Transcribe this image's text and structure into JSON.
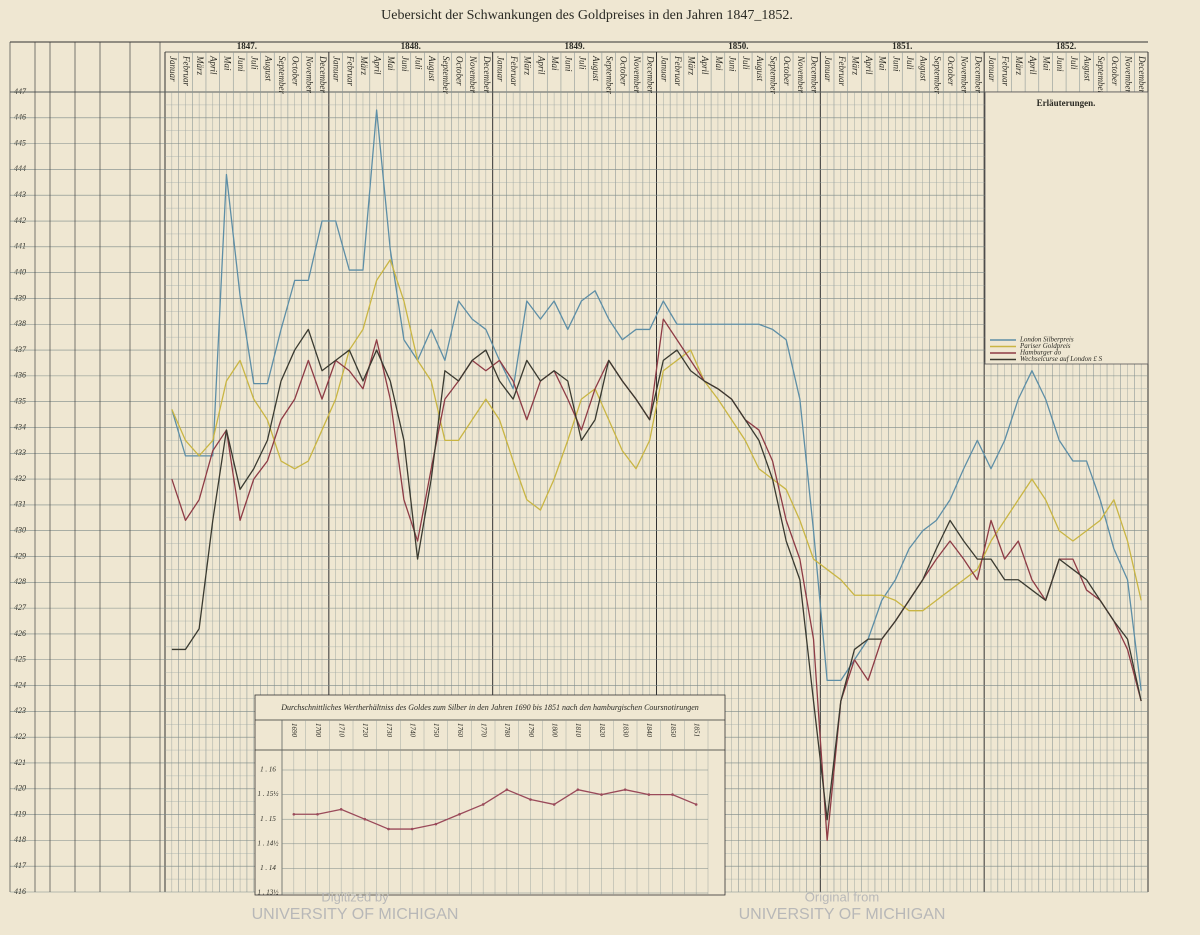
{
  "chart_data": [
    {
      "type": "line",
      "title": "Uebersicht der Schwankungen des Goldpreises in den Jahren 1847_1852.",
      "years": [
        "1847.",
        "1848.",
        "1849.",
        "1850.",
        "1851.",
        "1852."
      ],
      "categories": [
        "Januar",
        "Februar",
        "März",
        "April",
        "Mai",
        "Juni",
        "Juli",
        "August",
        "September",
        "October",
        "November",
        "December",
        "Januar",
        "Februar",
        "März",
        "April",
        "Mai",
        "Juni",
        "Juli",
        "August",
        "September",
        "October",
        "November",
        "December",
        "Januar",
        "Februar",
        "März",
        "April",
        "Mai",
        "Juni",
        "Juli",
        "August",
        "September",
        "October",
        "November",
        "December",
        "Januar",
        "Februar",
        "März",
        "April",
        "Mai",
        "Juni",
        "Juli",
        "August",
        "September",
        "October",
        "November",
        "December",
        "Januar",
        "Februar",
        "März",
        "April",
        "Mai",
        "Juni",
        "Juli",
        "August",
        "September",
        "October",
        "November",
        "December",
        "Januar",
        "Februar",
        "März",
        "April",
        "Mai",
        "Juni",
        "Juli",
        "August",
        "September",
        "October",
        "November",
        "December"
      ],
      "legend_title": "Erläuterungen.",
      "series": [
        {
          "name": "London Silberpreis",
          "color": "#5d8ea6",
          "values": [
            434.7,
            432.9,
            432.9,
            432.9,
            443.8,
            439.1,
            435.7,
            435.7,
            437.8,
            439.7,
            439.7,
            442.0,
            442.0,
            440.1,
            440.1,
            446.3,
            440.9,
            437.4,
            436.6,
            437.8,
            436.6,
            438.9,
            438.2,
            437.8,
            436.6,
            435.5,
            438.9,
            438.2,
            438.9,
            437.8,
            438.9,
            439.3,
            438.2,
            437.4,
            437.8,
            437.8,
            438.9,
            438.0,
            438.0,
            438.0,
            438.0,
            438.0,
            438.0,
            438.0,
            437.8,
            437.4,
            435.1,
            430.0,
            424.2,
            424.2,
            425.0,
            425.8,
            427.3,
            428.1,
            429.3,
            430.0,
            430.4,
            431.2,
            432.4,
            433.5,
            432.4,
            433.5,
            435.1,
            436.2,
            435.1,
            433.5,
            432.7,
            432.7,
            431.2,
            429.3,
            428.1,
            423.8
          ]
        },
        {
          "name": "Pariser Goldpreis",
          "color": "#c9b543",
          "values": [
            434.7,
            433.5,
            432.9,
            433.5,
            435.8,
            436.6,
            435.1,
            434.3,
            432.7,
            432.4,
            432.7,
            433.9,
            435.1,
            437.0,
            437.8,
            439.7,
            440.5,
            438.9,
            436.6,
            435.8,
            433.5,
            433.5,
            434.3,
            435.1,
            434.3,
            432.7,
            431.2,
            430.8,
            432.0,
            433.5,
            435.1,
            435.5,
            434.3,
            433.1,
            432.4,
            433.5,
            436.2,
            436.6,
            437.0,
            435.8,
            435.1,
            434.3,
            433.5,
            432.4,
            432.0,
            431.6,
            430.4,
            428.9,
            428.5,
            428.1,
            427.5,
            427.5,
            427.5,
            427.3,
            426.9,
            426.9,
            427.3,
            427.7,
            428.1,
            428.5,
            429.6,
            430.4,
            431.2,
            432.0,
            431.2,
            430.0,
            429.6,
            430.0,
            430.4,
            431.2,
            429.6,
            427.3
          ]
        },
        {
          "name": "Hamburger do",
          "color": "#8e3b45",
          "values": [
            432.0,
            430.4,
            431.2,
            433.1,
            433.9,
            430.4,
            432.0,
            432.7,
            434.3,
            435.1,
            436.6,
            435.1,
            436.6,
            436.2,
            435.5,
            437.4,
            435.1,
            431.2,
            429.6,
            432.4,
            435.1,
            435.8,
            436.6,
            436.2,
            436.6,
            435.8,
            434.3,
            435.8,
            436.2,
            435.1,
            433.9,
            435.5,
            436.6,
            435.8,
            435.1,
            434.3,
            438.2,
            437.4,
            436.6,
            435.8,
            435.5,
            435.1,
            434.3,
            433.9,
            432.7,
            430.4,
            428.9,
            425.8,
            418.0,
            423.4,
            425.0,
            424.2,
            425.8,
            426.5,
            427.3,
            428.1,
            428.9,
            429.6,
            428.9,
            428.1,
            430.4,
            428.9,
            429.6,
            428.1,
            427.3,
            428.9,
            428.9,
            427.7,
            427.3,
            426.5,
            425.4,
            423.4
          ]
        },
        {
          "name": "Wechselcurse auf London £ S",
          "color": "#3a3a30",
          "values": [
            425.4,
            425.4,
            426.2,
            430.4,
            433.9,
            431.6,
            432.4,
            433.5,
            435.8,
            437.0,
            437.8,
            436.2,
            436.6,
            437.0,
            435.8,
            437.0,
            435.8,
            433.5,
            428.9,
            432.0,
            436.2,
            435.8,
            436.6,
            437.0,
            435.8,
            435.1,
            436.6,
            435.8,
            436.2,
            435.8,
            433.5,
            434.3,
            436.6,
            435.8,
            435.1,
            434.3,
            436.6,
            437.0,
            436.2,
            435.8,
            435.5,
            435.1,
            434.3,
            433.5,
            432.0,
            429.6,
            428.1,
            423.4,
            418.8,
            423.4,
            425.4,
            425.8,
            425.8,
            426.5,
            427.3,
            428.1,
            429.3,
            430.4,
            429.6,
            428.9,
            428.9,
            428.1,
            428.1,
            427.7,
            427.3,
            428.9,
            428.5,
            428.1,
            427.3,
            426.5,
            425.8,
            423.4
          ]
        }
      ],
      "ylim": [
        416,
        447
      ],
      "yticks": [
        416,
        417,
        418,
        419,
        420,
        421,
        422,
        423,
        424,
        425,
        426,
        427,
        428,
        429,
        430,
        431,
        432,
        433,
        434,
        435,
        436,
        437,
        438,
        439,
        440,
        441,
        442,
        443,
        444,
        445,
        446,
        447
      ],
      "grid": true
    },
    {
      "type": "line",
      "title": "Durchschnittliches Wertherhältniss des Goldes zum Silber in den Jahren 1690 bis 1851 nach den hamburgischen Coursnotirungen",
      "categories": [
        "1690",
        "1700",
        "1710",
        "1720",
        "1730",
        "1740",
        "1750",
        "1760",
        "1770",
        "1780",
        "1790",
        "1800",
        "1810",
        "1820",
        "1830",
        "1840",
        "1850",
        "1851"
      ],
      "values": [
        15.1,
        15.1,
        15.2,
        15.0,
        14.8,
        14.8,
        14.9,
        15.1,
        15.3,
        15.6,
        15.4,
        15.3,
        15.6,
        15.5,
        15.6,
        15.5,
        15.5,
        15.3
      ],
      "color": "#9a4a5a",
      "ylim": [
        13.5,
        16
      ],
      "yticks": [
        {
          "value": 16,
          "label": "1 . 16"
        },
        {
          "value": 15.5,
          "label": "1 . 15½"
        },
        {
          "value": 15,
          "label": "1 . 15"
        },
        {
          "value": 14.5,
          "label": "1 . 14½"
        },
        {
          "value": 14,
          "label": "1 . 14"
        },
        {
          "value": 13.5,
          "label": "1 . 13½"
        }
      ],
      "grid": true
    }
  ],
  "watermark": {
    "left_top": "Digitized by",
    "left_bottom": "UNIVERSITY OF MICHIGAN",
    "right_top": "Original from",
    "right_bottom": "UNIVERSITY OF MICHIGAN"
  }
}
